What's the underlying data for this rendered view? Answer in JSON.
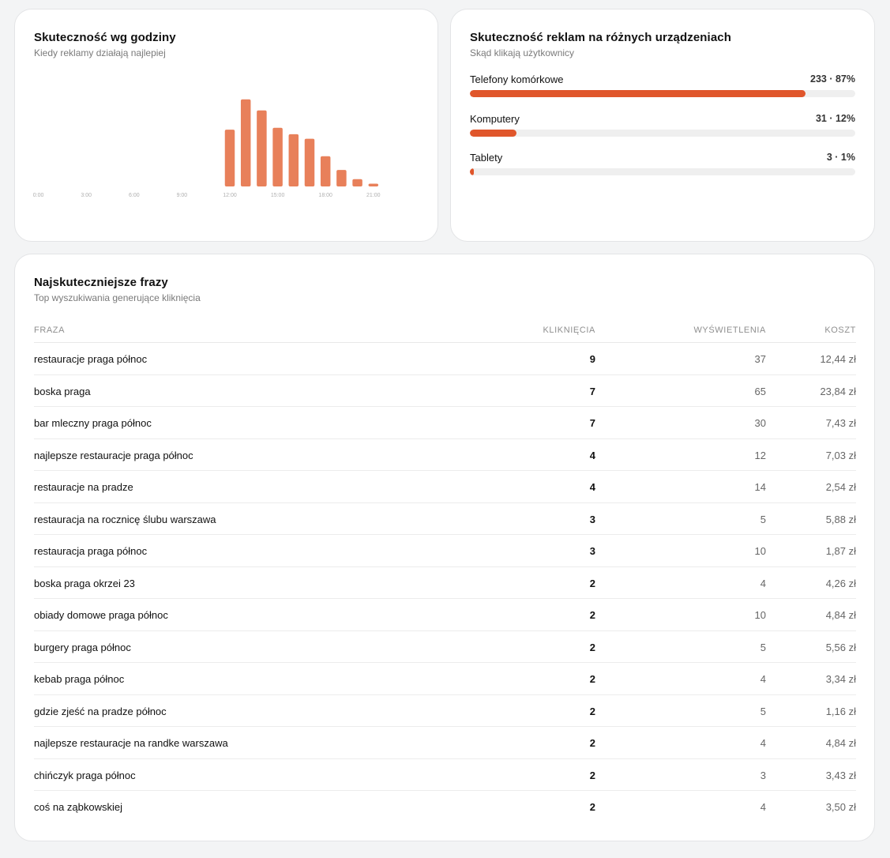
{
  "hours_card": {
    "title": "Skuteczność wg godziny",
    "subtitle": "Kiedy reklamy działają najlepiej"
  },
  "colors": {
    "hour_bar": "#e8805a",
    "device_bar": "#e0562b",
    "track": "#efefef"
  },
  "chart_data": {
    "type": "bar",
    "title": "Skuteczność wg godziny",
    "subtitle": "Kiedy reklamy działają najlepiej",
    "categories": [
      "0:00",
      "1:00",
      "2:00",
      "3:00",
      "4:00",
      "5:00",
      "6:00",
      "7:00",
      "8:00",
      "9:00",
      "10:00",
      "11:00",
      "12:00",
      "13:00",
      "14:00",
      "15:00",
      "16:00",
      "17:00",
      "18:00",
      "19:00",
      "20:00",
      "21:00"
    ],
    "tick_labels": [
      "0:00",
      "3:00",
      "6:00",
      "9:00",
      "12:00",
      "15:00",
      "18:00",
      "21:00"
    ],
    "values": [
      0,
      0,
      0,
      0,
      0,
      0,
      0,
      0,
      0,
      0,
      0,
      0,
      62,
      95,
      83,
      64,
      57,
      52,
      33,
      18,
      8,
      3
    ],
    "ylim": [
      0,
      100
    ],
    "grid": false,
    "legend": "none"
  },
  "devices_card": {
    "title": "Skuteczność reklam na różnych urządzeniach",
    "subtitle": "Skąd klikają użytkownicy",
    "items": [
      {
        "label": "Telefony komórkowe",
        "value": "233 · 87%",
        "fraction": 0.87
      },
      {
        "label": "Komputery",
        "value": "31 · 12%",
        "fraction": 0.12
      },
      {
        "label": "Tablety",
        "value": "3 · 1%",
        "fraction": 0.01
      }
    ]
  },
  "phrases_card": {
    "title": "Najskuteczniejsze frazy",
    "subtitle": "Top wyszukiwania generujące kliknięcia",
    "headers": {
      "phrase": "FRAZA",
      "clicks": "KLIKNIĘCIA",
      "views": "WYŚWIETLENIA",
      "cost": "KOSZT"
    },
    "rows": [
      {
        "phrase": "restauracje praga północ",
        "clicks": "9",
        "views": "37",
        "cost": "12,44 zł"
      },
      {
        "phrase": "boska praga",
        "clicks": "7",
        "views": "65",
        "cost": "23,84 zł"
      },
      {
        "phrase": "bar mleczny praga północ",
        "clicks": "7",
        "views": "30",
        "cost": "7,43 zł"
      },
      {
        "phrase": "najlepsze restauracje praga północ",
        "clicks": "4",
        "views": "12",
        "cost": "7,03 zł"
      },
      {
        "phrase": "restauracje na pradze",
        "clicks": "4",
        "views": "14",
        "cost": "2,54 zł"
      },
      {
        "phrase": "restauracja na rocznicę ślubu warszawa",
        "clicks": "3",
        "views": "5",
        "cost": "5,88 zł"
      },
      {
        "phrase": "restauracja praga północ",
        "clicks": "3",
        "views": "10",
        "cost": "1,87 zł"
      },
      {
        "phrase": "boska praga okrzei 23",
        "clicks": "2",
        "views": "4",
        "cost": "4,26 zł"
      },
      {
        "phrase": "obiady domowe praga północ",
        "clicks": "2",
        "views": "10",
        "cost": "4,84 zł"
      },
      {
        "phrase": "burgery praga północ",
        "clicks": "2",
        "views": "5",
        "cost": "5,56 zł"
      },
      {
        "phrase": "kebab praga północ",
        "clicks": "2",
        "views": "4",
        "cost": "3,34 zł"
      },
      {
        "phrase": "gdzie zjeść na pradze północ",
        "clicks": "2",
        "views": "5",
        "cost": "1,16 zł"
      },
      {
        "phrase": "najlepsze restauracje na randke warszawa",
        "clicks": "2",
        "views": "4",
        "cost": "4,84 zł"
      },
      {
        "phrase": "chińczyk praga północ",
        "clicks": "2",
        "views": "3",
        "cost": "3,43 zł"
      },
      {
        "phrase": "coś na ząbkowskiej",
        "clicks": "2",
        "views": "4",
        "cost": "3,50 zł"
      }
    ]
  }
}
